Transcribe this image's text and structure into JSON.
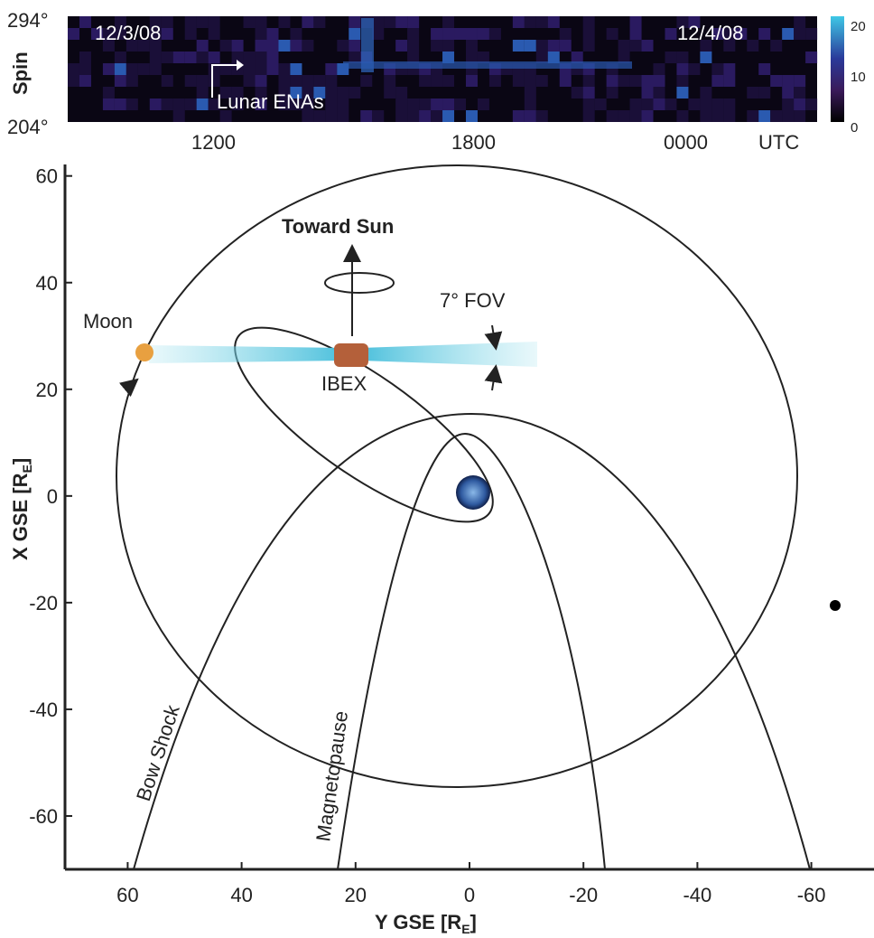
{
  "spin_panel": {
    "axis_label": "Spin",
    "top_angle": "294°",
    "bottom_angle": "204°",
    "start_date": "12/3/08",
    "end_date": "12/4/08",
    "annotation": "Lunar ENAs",
    "time_ticks": [
      "1200",
      "1800",
      "0000"
    ],
    "time_unit": "UTC",
    "colorbar_ticks": [
      "20",
      "10",
      "0"
    ]
  },
  "orbit_plot": {
    "xlim": [
      71,
      -71
    ],
    "ylim": [
      -70,
      63
    ],
    "xticks": [
      60,
      40,
      20,
      0,
      -20,
      -40,
      -60
    ],
    "yticks": [
      60,
      40,
      20,
      0,
      -20,
      -40,
      -60
    ],
    "x_label": {
      "main": "Y GSE [R",
      "sub": "E",
      "end": "]"
    },
    "y_label": {
      "main": "X GSE [R",
      "sub": "E",
      "end": "]"
    },
    "labels": {
      "sun": "Toward Sun",
      "fov": "7° FOV",
      "moon": "Moon",
      "ibex": "IBEX",
      "bow_shock": "Bow Shock",
      "magnetopause": "Magnetopause"
    }
  }
}
